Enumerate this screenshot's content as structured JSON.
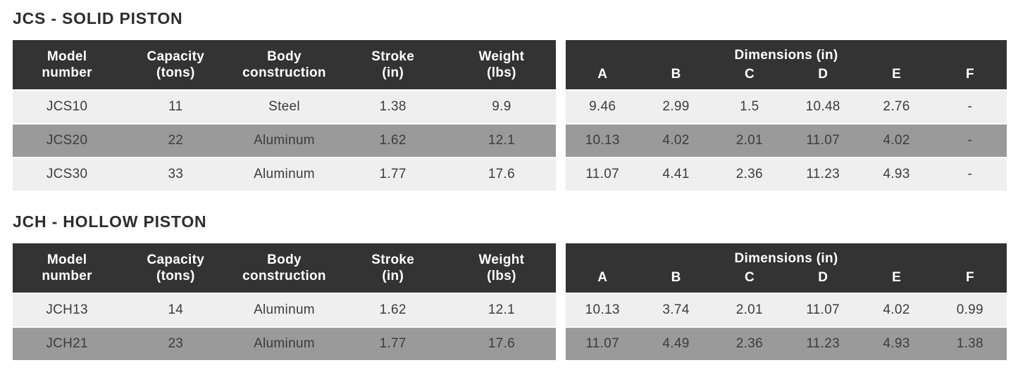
{
  "colors": {
    "header_bg": "#333333",
    "header_text": "#ffffff",
    "row_light": "#f0efef",
    "row_dark": "#9b9a9a",
    "title_text": "#2d2d2d",
    "cell_text": "#3c3c3c"
  },
  "sections": [
    {
      "title": "JCS - SOLID PISTON",
      "spec_table": {
        "headers": [
          {
            "top": "Model",
            "bottom": "number"
          },
          {
            "top": "Capacity",
            "bottom": "(tons)"
          },
          {
            "top": "Body",
            "bottom": "construction"
          },
          {
            "top": "Stroke",
            "bottom": "(in)"
          },
          {
            "top": "Weight",
            "bottom": "(lbs)"
          }
        ],
        "rows": [
          [
            "JCS10",
            "11",
            "Steel",
            "1.38",
            "9.9"
          ],
          [
            "JCS20",
            "22",
            "Aluminum",
            "1.62",
            "12.1"
          ],
          [
            "JCS30",
            "33",
            "Aluminum",
            "1.77",
            "17.6"
          ]
        ]
      },
      "dim_table": {
        "group_header": "Dimensions (in)",
        "headers": [
          "A",
          "B",
          "C",
          "D",
          "E",
          "F"
        ],
        "rows": [
          [
            "9.46",
            "2.99",
            "1.5",
            "10.48",
            "2.76",
            "-"
          ],
          [
            "10.13",
            "4.02",
            "2.01",
            "11.07",
            "4.02",
            "-"
          ],
          [
            "11.07",
            "4.41",
            "2.36",
            "11.23",
            "4.93",
            "-"
          ]
        ]
      }
    },
    {
      "title": "JCH - HOLLOW PISTON",
      "spec_table": {
        "headers": [
          {
            "top": "Model",
            "bottom": "number"
          },
          {
            "top": "Capacity",
            "bottom": "(tons)"
          },
          {
            "top": "Body",
            "bottom": "construction"
          },
          {
            "top": "Stroke",
            "bottom": "(in)"
          },
          {
            "top": "Weight",
            "bottom": "(lbs)"
          }
        ],
        "rows": [
          [
            "JCH13",
            "14",
            "Aluminum",
            "1.62",
            "12.1"
          ],
          [
            "JCH21",
            "23",
            "Aluminum",
            "1.77",
            "17.6"
          ]
        ]
      },
      "dim_table": {
        "group_header": "Dimensions (in)",
        "headers": [
          "A",
          "B",
          "C",
          "D",
          "E",
          "F"
        ],
        "rows": [
          [
            "10.13",
            "3.74",
            "2.01",
            "11.07",
            "4.02",
            "0.99"
          ],
          [
            "11.07",
            "4.49",
            "2.36",
            "11.23",
            "4.93",
            "1.38"
          ]
        ]
      }
    }
  ]
}
